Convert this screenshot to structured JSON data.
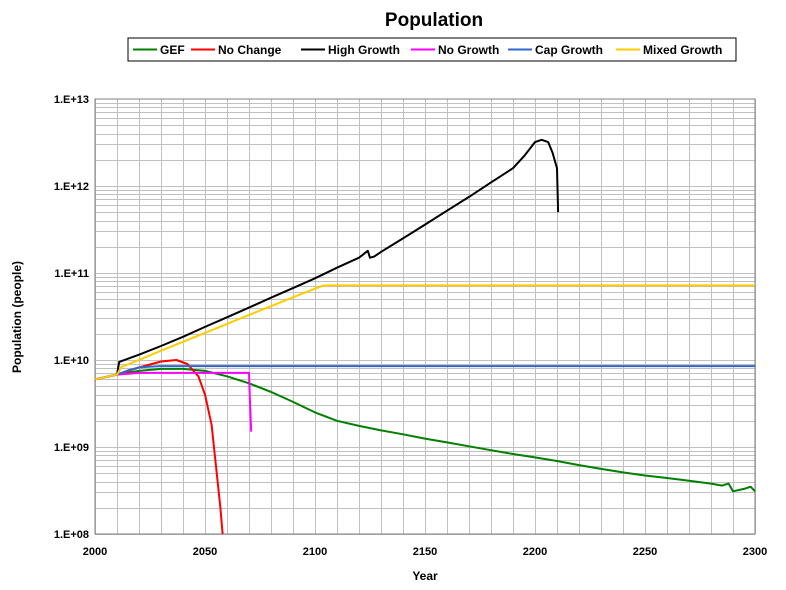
{
  "chart_data": {
    "type": "line",
    "title": "Population",
    "xlabel": "Year",
    "ylabel": "Population (people)",
    "xlim": [
      2000,
      2300
    ],
    "ylim": [
      100000000.0,
      10000000000000.0
    ],
    "yscale": "log",
    "grid": true,
    "legend_position": "top",
    "x_ticks": [
      "2000",
      "2050",
      "2100",
      "2150",
      "2200",
      "2250",
      "2300"
    ],
    "x_tick_values": [
      2000,
      2050,
      2100,
      2150,
      2200,
      2250,
      2300
    ],
    "y_ticks": [
      "1.E+08",
      "1.E+09",
      "1.E+10",
      "1.E+11",
      "1.E+12",
      "1.E+13"
    ],
    "y_tick_values": [
      100000000.0,
      1000000000.0,
      10000000000.0,
      100000000000.0,
      1000000000000.0,
      10000000000000.0
    ],
    "series": [
      {
        "name": "GEF",
        "color": "#008000",
        "x": [
          2000,
          2010,
          2020,
          2030,
          2040,
          2050,
          2060,
          2070,
          2080,
          2090,
          2100,
          2110,
          2120,
          2130,
          2140,
          2150,
          2160,
          2170,
          2180,
          2190,
          2200,
          2210,
          2220,
          2230,
          2240,
          2250,
          2260,
          2270,
          2280,
          2285,
          2288,
          2290,
          2295,
          2298,
          2300
        ],
        "y": [
          6000000000.0,
          6800000000.0,
          7500000000.0,
          7900000000.0,
          7900000000.0,
          7500000000.0,
          6500000000.0,
          5400000000.0,
          4300000000.0,
          3300000000.0,
          2500000000.0,
          2000000000.0,
          1750000000.0,
          1550000000.0,
          1400000000.0,
          1250000000.0,
          1130000000.0,
          1020000000.0,
          920000000.0,
          830000000.0,
          760000000.0,
          690000000.0,
          620000000.0,
          560000000.0,
          510000000.0,
          470000000.0,
          440000000.0,
          410000000.0,
          380000000.0,
          360000000.0,
          380000000.0,
          310000000.0,
          330000000.0,
          350000000.0,
          310000000.0
        ]
      },
      {
        "name": "No Change",
        "color": "#ff0000",
        "x": [
          2000,
          2010,
          2020,
          2030,
          2037,
          2042,
          2047,
          2050,
          2053,
          2055,
          2057,
          2058
        ],
        "y": [
          6000000000.0,
          6800000000.0,
          8200000000.0,
          9600000000.0,
          10000000000.0,
          9000000000.0,
          6500000000.0,
          4000000000.0,
          1800000000.0,
          600000000.0,
          200000000.0,
          100000000.0
        ]
      },
      {
        "name": "High Growth",
        "color": "#000000",
        "x": [
          2000,
          2010,
          2011,
          2020,
          2030,
          2040,
          2050,
          2060,
          2070,
          2080,
          2090,
          2100,
          2110,
          2120,
          2124,
          2125,
          2127,
          2130,
          2140,
          2150,
          2160,
          2170,
          2180,
          2190,
          2195,
          2200,
          2203,
          2206,
          2208,
          2210,
          2210.5
        ],
        "y": [
          6000000000.0,
          6800000000.0,
          9500000000.0,
          11500000000.0,
          14500000000.0,
          18500000000.0,
          24000000000.0,
          31000000000.0,
          40000000000.0,
          52000000000.0,
          67000000000.0,
          87000000000.0,
          115000000000.0,
          150000000000.0,
          180000000000.0,
          150000000000.0,
          155000000000.0,
          175000000000.0,
          250000000000.0,
          360000000000.0,
          520000000000.0,
          750000000000.0,
          1100000000000.0,
          1600000000000.0,
          2200000000000.0,
          3200000000000.0,
          3400000000000.0,
          3200000000000.0,
          2400000000000.0,
          1600000000000.0,
          500000000000.0
        ]
      },
      {
        "name": "No Growth",
        "color": "#ff00ff",
        "x": [
          2000,
          2010,
          2020,
          2030,
          2040,
          2050,
          2060,
          2070,
          2070.5,
          2071
        ],
        "y": [
          6000000000.0,
          6800000000.0,
          7100000000.0,
          7100000000.0,
          7100000000.0,
          7100000000.0,
          7100000000.0,
          7100000000.0,
          3000000000.0,
          1500000000.0
        ]
      },
      {
        "name": "Cap Growth",
        "color": "#3366cc",
        "x": [
          2000,
          2010,
          2015,
          2020,
          2025,
          2030,
          2300
        ],
        "y": [
          6000000000.0,
          6800000000.0,
          7600000000.0,
          8200000000.0,
          8400000000.0,
          8500000000.0,
          8500000000.0
        ]
      },
      {
        "name": "Mixed Growth",
        "color": "#ffcc00",
        "x": [
          2000,
          2010,
          2012,
          2020,
          2030,
          2040,
          2050,
          2060,
          2070,
          2080,
          2090,
          2100,
          2104,
          2300
        ],
        "y": [
          6000000000.0,
          6800000000.0,
          8300000000.0,
          10000000000.0,
          12800000000.0,
          16200000000.0,
          20500000000.0,
          26000000000.0,
          33000000000.0,
          41500000000.0,
          52500000000.0,
          66000000000.0,
          72000000000.0,
          72000000000.0
        ]
      }
    ]
  }
}
